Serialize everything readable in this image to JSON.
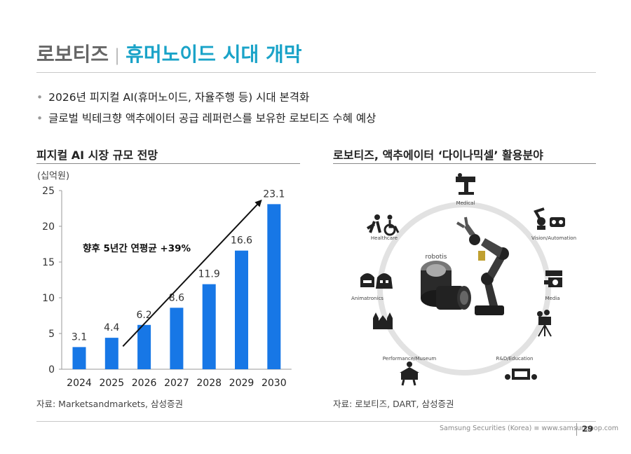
{
  "header": {
    "company": "로보티즈",
    "separator": "|",
    "headline": "휴머노이드 시대 개막"
  },
  "bullets": [
    "2026년 피지컬 AI(휴머노이드, 자율주행 등) 시대 본격화",
    "글로벌 빅테크향 액추에이터 공급 레퍼런스를 보유한 로보티즈 수혜 예상"
  ],
  "left_panel": {
    "title": "피지컬 AI 시장 규모 전망",
    "unit": "(십억원)",
    "source": "자료: Marketsandmarkets, 삼성증권"
  },
  "right_panel": {
    "title": "로보티즈, 액추에이터 ‘다이나믹셀’ 활용분야",
    "source": "자료: 로보티즈, DART, 삼성증권",
    "center": "robotis",
    "applications": [
      "Medical",
      "Vision/Automation",
      "Media",
      "R&D/Education",
      "Performance/Museum",
      "Animatronics",
      "Healthcare"
    ]
  },
  "chart_data": {
    "type": "bar",
    "title": "피지컬 AI 시장 규모 전망",
    "ylabel": "(십억원)",
    "xlabel": "",
    "categories": [
      "2024",
      "2025",
      "2026",
      "2027",
      "2028",
      "2029",
      "2030"
    ],
    "values": [
      3.1,
      4.4,
      6.2,
      8.6,
      11.9,
      16.6,
      23.1
    ],
    "value_labels": [
      "3.1",
      "4.4",
      "6.2",
      "8.6",
      "11.9",
      "16.6",
      "23.1"
    ],
    "ylim": [
      0,
      25
    ],
    "yticks": [
      "0",
      "5",
      "10",
      "15",
      "20",
      "25"
    ],
    "grid": false,
    "bar_color": "#1777e6",
    "annotation": "향후 5년간 연평균 +39%"
  },
  "footer": {
    "text": "Samsung Securities (Korea) ≡ www.samsungpop.com",
    "page": "29"
  }
}
